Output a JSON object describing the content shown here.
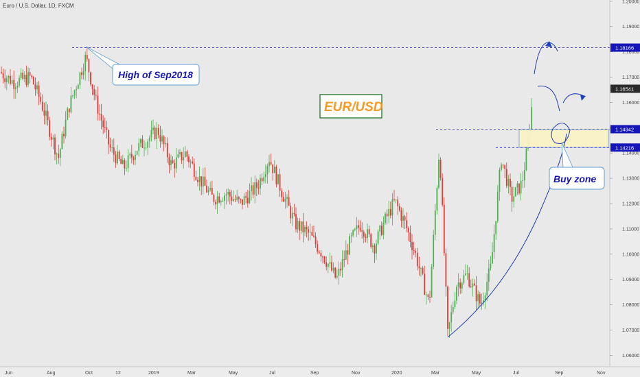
{
  "symbol_title": "Euro / U.S. Dollar, 1D, FXCM",
  "chart_data": {
    "type": "candlestick",
    "series": [
      {
        "name": "EUR/USD",
        "x": [
          "2018-06",
          "2018-07",
          "2018-08",
          "2018-09",
          "2018-10",
          "2018-11",
          "2018-12",
          "2019-01",
          "2019-02",
          "2019-03",
          "2019-04",
          "2019-05",
          "2019-06",
          "2019-07",
          "2019-08",
          "2019-09",
          "2019-10",
          "2019-11",
          "2019-12",
          "2020-01",
          "2020-02",
          "2020-03",
          "2020-04",
          "2020-05",
          "2020-06",
          "2020-07",
          "2020-07"
        ],
        "values": [
          1.165,
          1.17,
          1.16,
          1.175,
          1.153,
          1.138,
          1.142,
          1.15,
          1.135,
          1.13,
          1.123,
          1.117,
          1.13,
          1.122,
          1.11,
          1.1,
          1.105,
          1.1,
          1.11,
          1.11,
          1.085,
          1.1,
          1.085,
          1.09,
          1.125,
          1.145,
          1.1654
        ]
      }
    ],
    "ylim": [
      1.0555,
      1.2005
    ],
    "y_ticks": [
      "1.06000",
      "1.07000",
      "1.08000",
      "1.09000",
      "1.10000",
      "1.11000",
      "1.12000",
      "1.13000",
      "1.14000",
      "1.15000",
      "1.16000",
      "1.17000",
      "1.18000",
      "1.19000",
      "1.20000"
    ],
    "x_ticks": [
      "Jun",
      "Aug",
      "Oct",
      "12",
      "2019",
      "Mar",
      "May",
      "Jul",
      "Sep",
      "Nov",
      "2020",
      "Mar",
      "May",
      "Jul",
      "Sep",
      "Nov"
    ],
    "horizontal_levels": [
      {
        "value": 1.18166,
        "label": "1.18166"
      },
      {
        "value": 1.14942,
        "label": "1.14942"
      },
      {
        "value": 1.14216,
        "label": "1.14216"
      }
    ],
    "last_price": {
      "value": 1.16541,
      "label": "1.16541"
    },
    "annotations": {
      "high_label": "High of Sep2018",
      "pair_label": "EUR/USD",
      "zone_label": "Buy zone"
    },
    "colors": {
      "up": "#4caf50",
      "down": "#e53935",
      "level_line": "#3b3bdb",
      "label_box": "#1515b8",
      "pair_text": "#f59a23",
      "pair_border": "#2e7d32",
      "zone_fill": "#fbf3c6",
      "drawing": "#1f3fb8"
    },
    "grid": false
  }
}
